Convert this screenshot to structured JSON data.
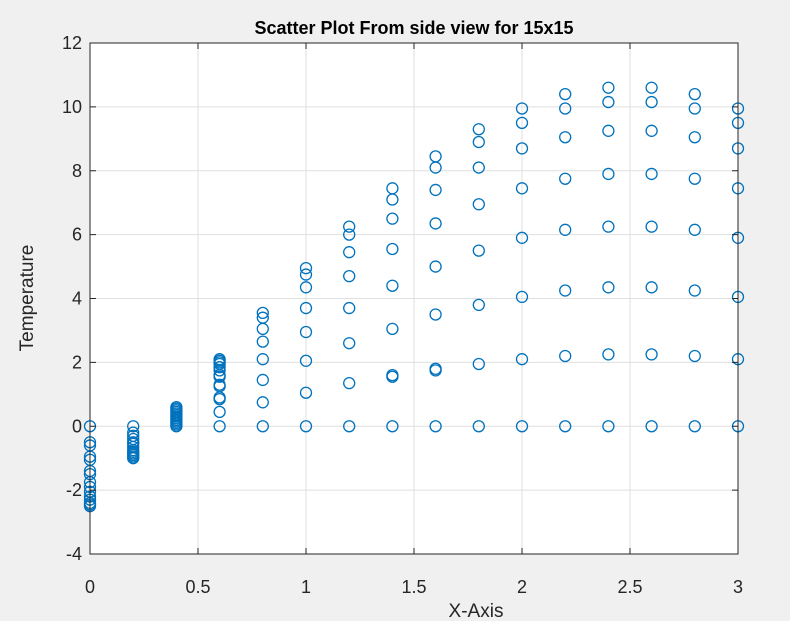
{
  "chart_data": {
    "type": "scatter",
    "title": "Scatter Plot From side view for 15x15",
    "xlabel": "X-Axis",
    "ylabel": "Temperature",
    "xlim": [
      0,
      3
    ],
    "ylim": [
      -4,
      12
    ],
    "grid": true,
    "legend": "none",
    "x_ticks": [
      "0",
      "0.5",
      "1",
      "1.5",
      "2",
      "2.5",
      "3"
    ],
    "x_tick_values": [
      0,
      0.5,
      1,
      1.5,
      2,
      2.5,
      3
    ],
    "y_ticks": [
      "-4",
      "-2",
      "0",
      "2",
      "4",
      "6",
      "8",
      "10",
      "12"
    ],
    "y_tick_values": [
      -4,
      -2,
      0,
      2,
      4,
      6,
      8,
      10,
      12
    ],
    "colors": {
      "marker": "#0072bd",
      "axes_background": "#ffffff",
      "figure_background": "#f0f0f0",
      "grid": "#dfdfdf",
      "axis": "#262626"
    },
    "series": [
      {
        "marker": "circle",
        "points": [
          [
            0,
            0
          ],
          [
            0,
            -0.5
          ],
          [
            0,
            -0.6
          ],
          [
            0,
            -0.95
          ],
          [
            0,
            -1.05
          ],
          [
            0,
            -1.4
          ],
          [
            0,
            -1.5
          ],
          [
            0,
            -1.75
          ],
          [
            0,
            -1.9
          ],
          [
            0,
            -2.05
          ],
          [
            0,
            -2.2
          ],
          [
            0,
            -2.3
          ],
          [
            0,
            -2.4
          ],
          [
            0,
            -2.45
          ],
          [
            0,
            -2.5
          ],
          [
            0.2,
            0
          ],
          [
            0.2,
            -0.2
          ],
          [
            0.2,
            -0.3
          ],
          [
            0.2,
            -0.4
          ],
          [
            0.2,
            -0.5
          ],
          [
            0.2,
            -0.55
          ],
          [
            0.2,
            -0.65
          ],
          [
            0.2,
            -0.75
          ],
          [
            0.2,
            -0.8
          ],
          [
            0.2,
            -0.85
          ],
          [
            0.2,
            -0.9
          ],
          [
            0.2,
            -0.95
          ],
          [
            0.2,
            -1.0
          ],
          [
            0.4,
            0
          ],
          [
            0.4,
            0.05
          ],
          [
            0.4,
            0.1
          ],
          [
            0.4,
            0.15
          ],
          [
            0.4,
            0.2
          ],
          [
            0.4,
            0.25
          ],
          [
            0.4,
            0.3
          ],
          [
            0.4,
            0.35
          ],
          [
            0.4,
            0.4
          ],
          [
            0.4,
            0.45
          ],
          [
            0.4,
            0.5
          ],
          [
            0.4,
            0.55
          ],
          [
            0.4,
            0.6
          ],
          [
            0.6,
            0
          ],
          [
            0.6,
            0.45
          ],
          [
            0.6,
            0.85
          ],
          [
            0.6,
            0.9
          ],
          [
            0.6,
            1.25
          ],
          [
            0.6,
            1.3
          ],
          [
            0.6,
            1.55
          ],
          [
            0.6,
            1.6
          ],
          [
            0.6,
            1.75
          ],
          [
            0.6,
            1.85
          ],
          [
            0.6,
            1.95
          ],
          [
            0.6,
            2.0
          ],
          [
            0.6,
            2.05
          ],
          [
            0.6,
            2.1
          ],
          [
            0.8,
            0
          ],
          [
            0.8,
            0.75
          ],
          [
            0.8,
            1.45
          ],
          [
            0.8,
            2.1
          ],
          [
            0.8,
            2.65
          ],
          [
            0.8,
            3.05
          ],
          [
            0.8,
            3.4
          ],
          [
            0.8,
            3.55
          ],
          [
            1.0,
            0
          ],
          [
            1.0,
            1.05
          ],
          [
            1.0,
            2.05
          ],
          [
            1.0,
            2.95
          ],
          [
            1.0,
            3.7
          ],
          [
            1.0,
            4.35
          ],
          [
            1.0,
            4.75
          ],
          [
            1.0,
            4.95
          ],
          [
            1.2,
            0
          ],
          [
            1.2,
            1.35
          ],
          [
            1.2,
            2.6
          ],
          [
            1.2,
            3.7
          ],
          [
            1.2,
            4.7
          ],
          [
            1.2,
            5.45
          ],
          [
            1.2,
            6.0
          ],
          [
            1.2,
            6.25
          ],
          [
            1.4,
            0
          ],
          [
            1.4,
            1.55
          ],
          [
            1.4,
            1.6
          ],
          [
            1.4,
            3.05
          ],
          [
            1.4,
            4.4
          ],
          [
            1.4,
            5.55
          ],
          [
            1.4,
            6.5
          ],
          [
            1.4,
            7.1
          ],
          [
            1.4,
            7.45
          ],
          [
            1.6,
            0
          ],
          [
            1.6,
            1.75
          ],
          [
            1.6,
            1.8
          ],
          [
            1.6,
            3.5
          ],
          [
            1.6,
            5.0
          ],
          [
            1.6,
            6.35
          ],
          [
            1.6,
            7.4
          ],
          [
            1.6,
            8.1
          ],
          [
            1.6,
            8.45
          ],
          [
            1.8,
            0
          ],
          [
            1.8,
            1.95
          ],
          [
            1.8,
            3.8
          ],
          [
            1.8,
            5.5
          ],
          [
            1.8,
            6.95
          ],
          [
            1.8,
            8.1
          ],
          [
            1.8,
            8.9
          ],
          [
            1.8,
            9.3
          ],
          [
            2.0,
            0
          ],
          [
            2.0,
            2.1
          ],
          [
            2.0,
            4.05
          ],
          [
            2.0,
            5.9
          ],
          [
            2.0,
            7.45
          ],
          [
            2.0,
            8.7
          ],
          [
            2.0,
            9.5
          ],
          [
            2.0,
            9.95
          ],
          [
            2.2,
            0
          ],
          [
            2.2,
            2.2
          ],
          [
            2.2,
            4.25
          ],
          [
            2.2,
            6.15
          ],
          [
            2.2,
            7.75
          ],
          [
            2.2,
            9.05
          ],
          [
            2.2,
            9.95
          ],
          [
            2.2,
            10.4
          ],
          [
            2.4,
            0
          ],
          [
            2.4,
            2.25
          ],
          [
            2.4,
            4.35
          ],
          [
            2.4,
            6.25
          ],
          [
            2.4,
            7.9
          ],
          [
            2.4,
            9.25
          ],
          [
            2.4,
            10.15
          ],
          [
            2.4,
            10.6
          ],
          [
            2.6,
            0
          ],
          [
            2.6,
            2.25
          ],
          [
            2.6,
            4.35
          ],
          [
            2.6,
            6.25
          ],
          [
            2.6,
            7.9
          ],
          [
            2.6,
            9.25
          ],
          [
            2.6,
            10.15
          ],
          [
            2.6,
            10.6
          ],
          [
            2.8,
            0
          ],
          [
            2.8,
            2.2
          ],
          [
            2.8,
            4.25
          ],
          [
            2.8,
            6.15
          ],
          [
            2.8,
            7.75
          ],
          [
            2.8,
            9.05
          ],
          [
            2.8,
            9.95
          ],
          [
            2.8,
            10.4
          ],
          [
            3.0,
            0
          ],
          [
            3.0,
            2.1
          ],
          [
            3.0,
            4.05
          ],
          [
            3.0,
            5.9
          ],
          [
            3.0,
            7.45
          ],
          [
            3.0,
            8.7
          ],
          [
            3.0,
            9.5
          ],
          [
            3.0,
            9.95
          ]
        ]
      }
    ]
  }
}
